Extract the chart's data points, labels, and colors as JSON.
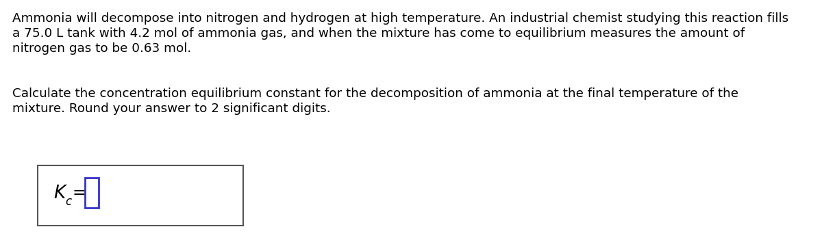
{
  "background_color": "#ffffff",
  "text_color": "#000000",
  "text_fontsize": 13.2,
  "line1": "Ammonia will decompose into nitrogen and hydrogen at high temperature. An industrial chemist studying this reaction fills",
  "line2": "a 75.0 L tank with 4.2 mol of ammonia gas, and when the mixture has come to equilibrium measures the amount of",
  "line3": "nitrogen gas to be 0.63 mol.",
  "line4": "Calculate the concentration equilibrium constant for the decomposition of ammonia at the final temperature of the",
  "line5": "mixture. Round your answer to 2 significant digits.",
  "box_edge_color": "#555555",
  "input_box_color": "#3333cc",
  "kc_fontsize": 17,
  "sub_fontsize": 13
}
